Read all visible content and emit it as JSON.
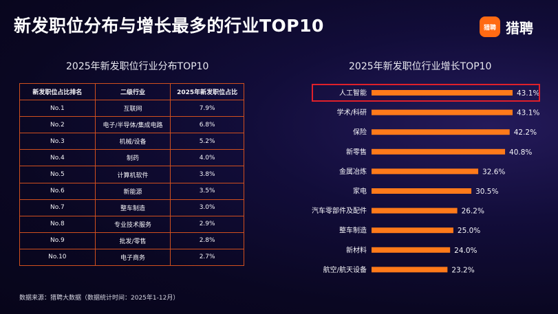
{
  "header": {
    "title": "新发职位分布与增长最多的行业TOP10"
  },
  "logo": {
    "badge_text": "猎聘",
    "text": "猎聘",
    "color": "#ff6a13"
  },
  "left_panel": {
    "title": "2025年新发职位行业分布TOP10",
    "columns": [
      "新发职位占比排名",
      "二级行业",
      "2025年新发职位占比"
    ],
    "rows": [
      [
        "No.1",
        "互联网",
        "7.9%"
      ],
      [
        "No.2",
        "电子/半导体/集成电路",
        "6.8%"
      ],
      [
        "No.3",
        "机械/设备",
        "5.2%"
      ],
      [
        "No.4",
        "制药",
        "4.0%"
      ],
      [
        "No.5",
        "计算机软件",
        "3.8%"
      ],
      [
        "No.6",
        "新能源",
        "3.5%"
      ],
      [
        "No.7",
        "整车制造",
        "3.0%"
      ],
      [
        "No.8",
        "专业技术服务",
        "2.9%"
      ],
      [
        "No.9",
        "批发/零售",
        "2.8%"
      ],
      [
        "No.10",
        "电子商务",
        "2.7%"
      ]
    ]
  },
  "right_panel": {
    "title": "2025年新发职位行业增长TOP10"
  },
  "chart_data": {
    "type": "bar",
    "orientation": "horizontal",
    "categories": [
      "人工智能",
      "学术/科研",
      "保险",
      "新零售",
      "金属冶炼",
      "家电",
      "汽车零部件及配件",
      "整车制造",
      "新材料",
      "航空/航天设备"
    ],
    "values": [
      43.1,
      43.1,
      42.2,
      40.8,
      32.6,
      30.5,
      26.2,
      25.0,
      24.0,
      23.2
    ],
    "value_labels": [
      "43.1%",
      "43.1%",
      "42.2%",
      "40.8%",
      "32.6%",
      "30.5%",
      "26.2%",
      "25.0%",
      "24.0%",
      "23.2%"
    ],
    "highlighted_category": "人工智能",
    "bar_color": "#ff7a1a",
    "highlight_color": "#e0202a",
    "grid": false
  },
  "footnote": "数据来源：猎聘大数据（数据统计时间：2025年1-12月）"
}
